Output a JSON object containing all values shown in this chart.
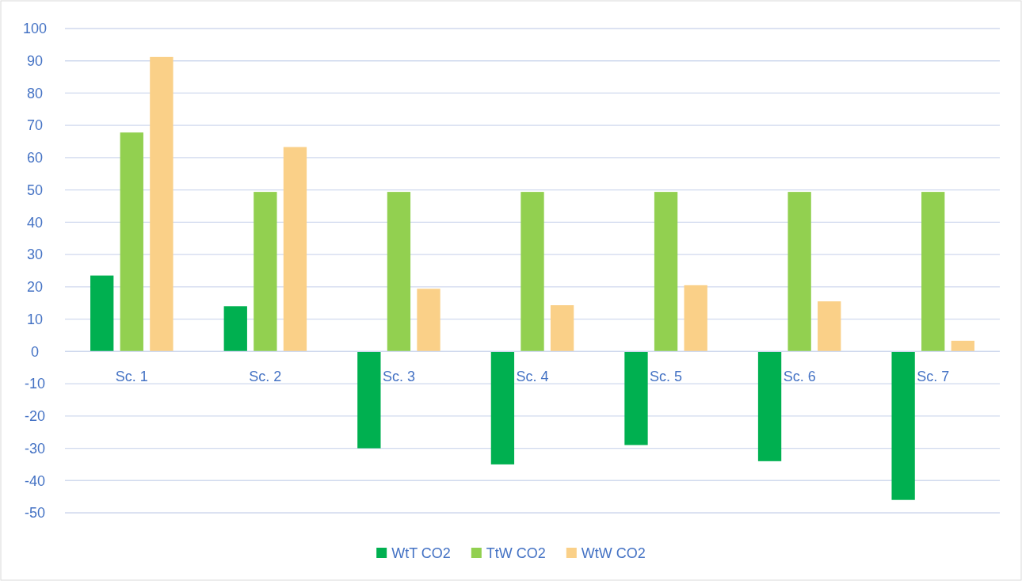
{
  "chart_data": {
    "type": "bar",
    "categories": [
      "Sc. 1",
      "Sc. 2",
      "Sc. 3",
      "Sc. 4",
      "Sc. 5",
      "Sc. 6",
      "Sc. 7"
    ],
    "series": [
      {
        "name": "WtT CO2",
        "color": "#00b050",
        "values": [
          23.5,
          14,
          -30,
          -35,
          -29,
          -34,
          -46
        ]
      },
      {
        "name": "TtW CO2",
        "color": "#92d050",
        "values": [
          67.8,
          49.4,
          49.4,
          49.4,
          49.4,
          49.4,
          49.4
        ]
      },
      {
        "name": "WtW CO2",
        "color": "#fad088",
        "values": [
          91.2,
          63.3,
          19.4,
          14.3,
          20.5,
          15.5,
          3.3
        ]
      }
    ],
    "ylim": [
      -50,
      100
    ],
    "yticks": [
      -50,
      -40,
      -30,
      -20,
      -10,
      0,
      10,
      20,
      30,
      40,
      50,
      60,
      70,
      80,
      90,
      100
    ],
    "grid": "y",
    "legend": "bottom"
  }
}
